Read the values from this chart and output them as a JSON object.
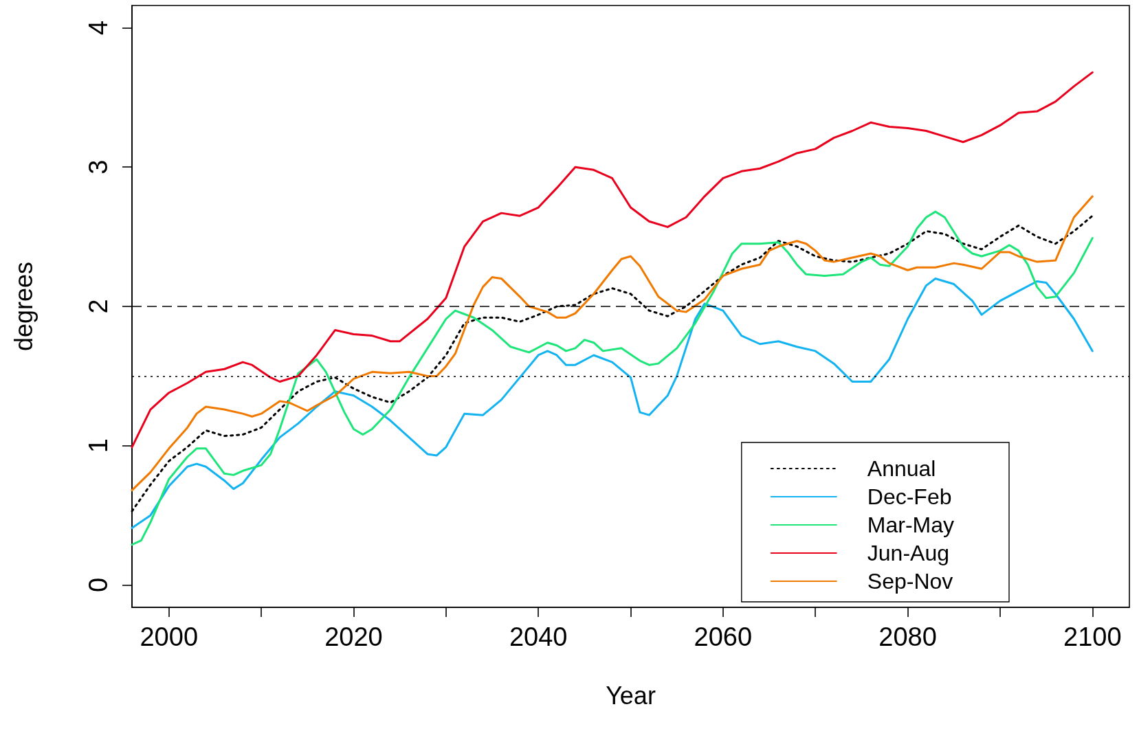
{
  "chart_data": {
    "type": "line",
    "xlabel": "Year",
    "ylabel": "degrees",
    "xlim": [
      1996,
      2104
    ],
    "ylim": [
      -0.16,
      4.16
    ],
    "xticks": [
      2000,
      {
        "value": 2010,
        "label": null
      },
      2020,
      {
        "value": 2030,
        "label": null
      },
      2040,
      {
        "value": 2050,
        "label": null
      },
      2060,
      {
        "value": 2070,
        "label": null
      },
      2080,
      {
        "value": 2090,
        "label": null
      },
      2100
    ],
    "yticks": [
      0,
      1,
      2,
      3,
      4
    ],
    "grid": false,
    "legend": "bottom right",
    "marker": "none",
    "ref_lines": [
      {
        "axis": "y",
        "value": 2,
        "color": "#000000",
        "line_style": "dashed"
      },
      {
        "axis": "y",
        "value": 1.5,
        "color": "#000000",
        "line_style": "dotted"
      }
    ],
    "series": [
      {
        "name": "Annual",
        "color": "#000000",
        "line_style": "dotted",
        "x": [
          1996,
          1998,
          2000,
          2002,
          2004,
          2006,
          2008,
          2010,
          2012,
          2014,
          2016,
          2018,
          2020,
          2022,
          2024,
          2026,
          2028,
          2030,
          2032,
          2034,
          2036,
          2038,
          2040,
          2042,
          2044,
          2046,
          2048,
          2050,
          2052,
          2054,
          2056,
          2058,
          2060,
          2062,
          2064,
          2066,
          2068,
          2070,
          2072,
          2074,
          2076,
          2078,
          2080,
          2082,
          2084,
          2086,
          2088,
          2090,
          2092,
          2094,
          2096,
          2098,
          2100
        ],
        "values": [
          0.53,
          0.72,
          0.89,
          0.99,
          1.11,
          1.07,
          1.08,
          1.13,
          1.26,
          1.39,
          1.46,
          1.49,
          1.41,
          1.35,
          1.31,
          1.39,
          1.49,
          1.65,
          1.88,
          1.92,
          1.92,
          1.89,
          1.94,
          2.0,
          2.01,
          2.09,
          2.13,
          2.09,
          1.97,
          1.93,
          2.0,
          2.11,
          2.22,
          2.3,
          2.35,
          2.47,
          2.43,
          2.36,
          2.33,
          2.32,
          2.35,
          2.38,
          2.45,
          2.54,
          2.52,
          2.45,
          2.41,
          2.5,
          2.58,
          2.5,
          2.45,
          2.54,
          2.65
        ]
      },
      {
        "name": "Dec-Feb",
        "color": "#12b3f0",
        "line_style": "solid",
        "x": [
          1996,
          1998,
          2000,
          2002,
          2003,
          2004,
          2006,
          2007,
          2008,
          2010,
          2012,
          2014,
          2016,
          2018,
          2020,
          2022,
          2024,
          2026,
          2028,
          2029,
          2030,
          2032,
          2034,
          2036,
          2038,
          2040,
          2041,
          2042,
          2043,
          2044,
          2046,
          2048,
          2050,
          2051,
          2052,
          2054,
          2055,
          2057,
          2058,
          2060,
          2062,
          2064,
          2066,
          2068,
          2070,
          2072,
          2074,
          2076,
          2078,
          2080,
          2082,
          2083,
          2085,
          2087,
          2088,
          2090,
          2092,
          2094,
          2095,
          2096,
          2098,
          2100
        ],
        "values": [
          0.41,
          0.5,
          0.71,
          0.85,
          0.87,
          0.85,
          0.75,
          0.69,
          0.73,
          0.9,
          1.06,
          1.16,
          1.28,
          1.39,
          1.36,
          1.28,
          1.18,
          1.06,
          0.94,
          0.93,
          0.99,
          1.23,
          1.22,
          1.33,
          1.49,
          1.65,
          1.68,
          1.65,
          1.58,
          1.58,
          1.65,
          1.6,
          1.49,
          1.24,
          1.22,
          1.36,
          1.5,
          1.91,
          2.02,
          1.97,
          1.79,
          1.73,
          1.75,
          1.71,
          1.68,
          1.59,
          1.46,
          1.46,
          1.62,
          1.91,
          2.15,
          2.2,
          2.16,
          2.04,
          1.94,
          2.04,
          2.11,
          2.18,
          2.17,
          2.09,
          1.91,
          1.68
        ]
      },
      {
        "name": "Mar-May",
        "color": "#1de57a",
        "line_style": "solid",
        "x": [
          1996,
          1997,
          1998,
          2000,
          2002,
          2003,
          2004,
          2006,
          2007,
          2008,
          2010,
          2011,
          2012,
          2014,
          2016,
          2017,
          2019,
          2020,
          2021,
          2022,
          2024,
          2026,
          2028,
          2030,
          2031,
          2033,
          2035,
          2037,
          2039,
          2041,
          2042,
          2043,
          2044,
          2045,
          2046,
          2047,
          2049,
          2051,
          2052,
          2053,
          2055,
          2057,
          2059,
          2061,
          2062,
          2064,
          2066,
          2067,
          2068,
          2069,
          2071,
          2073,
          2075,
          2076,
          2077,
          2078,
          2080,
          2081,
          2082,
          2083,
          2084,
          2086,
          2087,
          2088,
          2090,
          2091,
          2092,
          2093,
          2094,
          2095,
          2096,
          2098,
          2100
        ],
        "values": [
          0.29,
          0.32,
          0.45,
          0.76,
          0.92,
          0.98,
          0.98,
          0.8,
          0.79,
          0.82,
          0.86,
          0.94,
          1.12,
          1.52,
          1.62,
          1.53,
          1.24,
          1.12,
          1.08,
          1.12,
          1.26,
          1.49,
          1.7,
          1.91,
          1.97,
          1.92,
          1.83,
          1.71,
          1.67,
          1.74,
          1.72,
          1.68,
          1.7,
          1.76,
          1.74,
          1.68,
          1.7,
          1.61,
          1.58,
          1.59,
          1.7,
          1.88,
          2.11,
          2.38,
          2.45,
          2.45,
          2.46,
          2.39,
          2.3,
          2.23,
          2.22,
          2.23,
          2.32,
          2.35,
          2.3,
          2.29,
          2.43,
          2.56,
          2.64,
          2.68,
          2.64,
          2.43,
          2.38,
          2.36,
          2.4,
          2.44,
          2.4,
          2.3,
          2.14,
          2.06,
          2.07,
          2.24,
          2.49
        ]
      },
      {
        "name": "Jun-Aug",
        "color": "#e8001c",
        "line_style": "solid",
        "x": [
          1996,
          1998,
          2000,
          2002,
          2004,
          2006,
          2008,
          2009,
          2011,
          2012,
          2014,
          2016,
          2018,
          2020,
          2022,
          2024,
          2025,
          2028,
          2030,
          2032,
          2034,
          2036,
          2038,
          2040,
          2042,
          2044,
          2046,
          2048,
          2050,
          2052,
          2054,
          2056,
          2058,
          2060,
          2062,
          2064,
          2066,
          2068,
          2070,
          2072,
          2074,
          2076,
          2078,
          2080,
          2082,
          2084,
          2086,
          2088,
          2090,
          2092,
          2094,
          2096,
          2098,
          2100
        ],
        "values": [
          0.99,
          1.26,
          1.38,
          1.45,
          1.53,
          1.55,
          1.6,
          1.58,
          1.49,
          1.46,
          1.5,
          1.65,
          1.83,
          1.8,
          1.79,
          1.75,
          1.75,
          1.91,
          2.06,
          2.43,
          2.61,
          2.67,
          2.65,
          2.71,
          2.85,
          3.0,
          2.98,
          2.92,
          2.71,
          2.61,
          2.57,
          2.64,
          2.79,
          2.92,
          2.97,
          2.99,
          3.04,
          3.1,
          3.13,
          3.21,
          3.26,
          3.32,
          3.29,
          3.28,
          3.26,
          3.22,
          3.18,
          3.23,
          3.3,
          3.39,
          3.4,
          3.47,
          3.58,
          3.68
        ]
      },
      {
        "name": "Sep-Nov",
        "color": "#f07a00",
        "line_style": "solid",
        "x": [
          1996,
          1998,
          2000,
          2002,
          2003,
          2004,
          2006,
          2008,
          2009,
          2010,
          2012,
          2013,
          2014,
          2015,
          2016,
          2018,
          2020,
          2022,
          2024,
          2026,
          2028,
          2029,
          2030,
          2031,
          2033,
          2034,
          2035,
          2036,
          2038,
          2039,
          2041,
          2042,
          2043,
          2044,
          2046,
          2048,
          2049,
          2050,
          2051,
          2053,
          2055,
          2056,
          2058,
          2060,
          2062,
          2064,
          2065,
          2066,
          2068,
          2069,
          2070,
          2071,
          2072,
          2074,
          2076,
          2077,
          2078,
          2080,
          2081,
          2083,
          2085,
          2086,
          2088,
          2090,
          2091,
          2092,
          2094,
          2096,
          2098,
          2100
        ],
        "values": [
          0.68,
          0.81,
          0.98,
          1.13,
          1.23,
          1.28,
          1.26,
          1.23,
          1.21,
          1.23,
          1.32,
          1.31,
          1.28,
          1.25,
          1.29,
          1.36,
          1.48,
          1.53,
          1.52,
          1.53,
          1.5,
          1.5,
          1.57,
          1.66,
          2.01,
          2.14,
          2.21,
          2.2,
          2.07,
          2.0,
          1.96,
          1.92,
          1.92,
          1.95,
          2.09,
          2.26,
          2.34,
          2.36,
          2.29,
          2.07,
          1.97,
          1.96,
          2.05,
          2.22,
          2.27,
          2.3,
          2.4,
          2.43,
          2.47,
          2.45,
          2.4,
          2.33,
          2.32,
          2.35,
          2.38,
          2.36,
          2.31,
          2.26,
          2.28,
          2.28,
          2.31,
          2.3,
          2.27,
          2.39,
          2.39,
          2.36,
          2.32,
          2.33,
          2.64,
          2.79
        ]
      }
    ]
  }
}
